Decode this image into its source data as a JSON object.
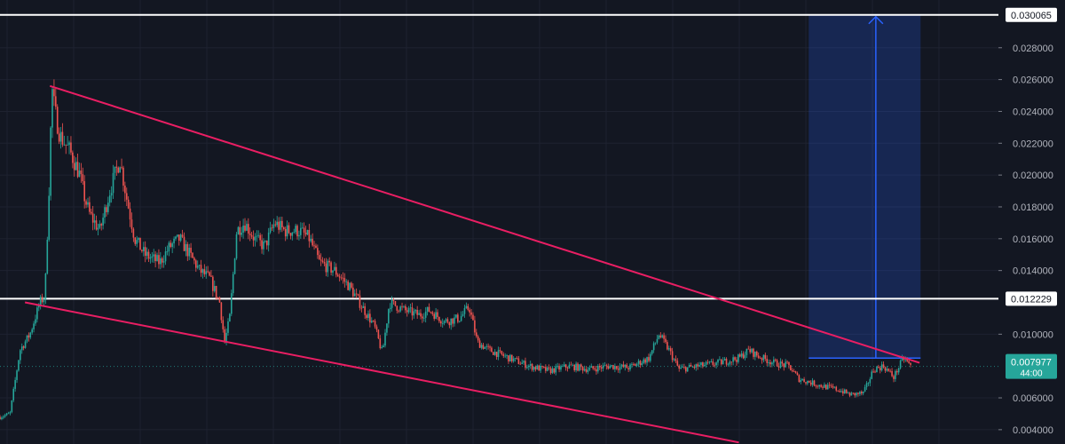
{
  "chart_data": {
    "type": "candlestick",
    "price_axis": {
      "ticks": [
        "0.004000",
        "0.006000",
        "0.010000",
        "0.014000",
        "0.016000",
        "0.018000",
        "0.020000",
        "0.022000",
        "0.024000",
        "0.026000",
        "0.028000"
      ],
      "tick_values": [
        0.004,
        0.006,
        0.01,
        0.014,
        0.016,
        0.018,
        0.02,
        0.022,
        0.024,
        0.026,
        0.028
      ],
      "range": [
        0.0031,
        0.031
      ]
    },
    "horizontal_levels": [
      {
        "value": 0.030065,
        "label": "0.030065",
        "color": "#ffffff"
      },
      {
        "value": 0.012229,
        "label": "0.012229",
        "color": "#ffffff"
      }
    ],
    "current_price": {
      "value": 0.007977,
      "label": "0.007977",
      "countdown": "44:00",
      "color": "#26a69a"
    },
    "trendlines": [
      {
        "name": "upper",
        "color": "#e91e63",
        "from": {
          "x": 0.05,
          "y": 0.0256
        },
        "to": {
          "x": 0.921,
          "y": 0.0082
        }
      },
      {
        "name": "lower",
        "color": "#e91e63",
        "from": {
          "x": 0.025,
          "y": 0.012
        },
        "to": {
          "x": 0.74,
          "y": 0.0032
        }
      }
    ],
    "long_position": {
      "from_x": 0.81,
      "to_x": 0.922,
      "entry": 0.0085,
      "target": 0.030065,
      "color": "#2962ff"
    },
    "path_points": [
      [
        0.0,
        0.0048
      ],
      [
        0.01,
        0.005
      ],
      [
        0.02,
        0.009
      ],
      [
        0.03,
        0.01
      ],
      [
        0.04,
        0.012
      ],
      [
        0.045,
        0.0124
      ],
      [
        0.049,
        0.019
      ],
      [
        0.052,
        0.0255
      ],
      [
        0.055,
        0.024
      ],
      [
        0.06,
        0.0225
      ],
      [
        0.07,
        0.0215
      ],
      [
        0.08,
        0.02
      ],
      [
        0.085,
        0.0185
      ],
      [
        0.09,
        0.0175
      ],
      [
        0.1,
        0.0165
      ],
      [
        0.11,
        0.019
      ],
      [
        0.12,
        0.021
      ],
      [
        0.127,
        0.0185
      ],
      [
        0.135,
        0.016
      ],
      [
        0.145,
        0.015
      ],
      [
        0.16,
        0.0145
      ],
      [
        0.17,
        0.0155
      ],
      [
        0.18,
        0.016
      ],
      [
        0.19,
        0.015
      ],
      [
        0.2,
        0.014
      ],
      [
        0.21,
        0.0135
      ],
      [
        0.22,
        0.012
      ],
      [
        0.225,
        0.0095
      ],
      [
        0.23,
        0.011
      ],
      [
        0.237,
        0.0165
      ],
      [
        0.245,
        0.017
      ],
      [
        0.255,
        0.016
      ],
      [
        0.265,
        0.0155
      ],
      [
        0.275,
        0.017
      ],
      [
        0.285,
        0.0165
      ],
      [
        0.3,
        0.0165
      ],
      [
        0.31,
        0.016
      ],
      [
        0.32,
        0.0145
      ],
      [
        0.335,
        0.014
      ],
      [
        0.35,
        0.013
      ],
      [
        0.36,
        0.012
      ],
      [
        0.375,
        0.0105
      ],
      [
        0.383,
        0.0088
      ],
      [
        0.39,
        0.012
      ],
      [
        0.405,
        0.0115
      ],
      [
        0.42,
        0.0112
      ],
      [
        0.43,
        0.0115
      ],
      [
        0.445,
        0.0108
      ],
      [
        0.46,
        0.011
      ],
      [
        0.47,
        0.0117
      ],
      [
        0.478,
        0.0095
      ],
      [
        0.49,
        0.009
      ],
      [
        0.51,
        0.0085
      ],
      [
        0.53,
        0.008
      ],
      [
        0.55,
        0.0077
      ],
      [
        0.57,
        0.008
      ],
      [
        0.59,
        0.0078
      ],
      [
        0.61,
        0.008
      ],
      [
        0.63,
        0.0079
      ],
      [
        0.65,
        0.0085
      ],
      [
        0.66,
        0.01
      ],
      [
        0.67,
        0.009
      ],
      [
        0.68,
        0.0078
      ],
      [
        0.7,
        0.008
      ],
      [
        0.72,
        0.0082
      ],
      [
        0.74,
        0.0085
      ],
      [
        0.75,
        0.009
      ],
      [
        0.76,
        0.0086
      ],
      [
        0.775,
        0.0082
      ],
      [
        0.79,
        0.008
      ],
      [
        0.8,
        0.0072
      ],
      [
        0.82,
        0.0068
      ],
      [
        0.84,
        0.0065
      ],
      [
        0.852,
        0.0062
      ],
      [
        0.865,
        0.0063
      ],
      [
        0.875,
        0.0078
      ],
      [
        0.885,
        0.008
      ],
      [
        0.895,
        0.0073
      ],
      [
        0.905,
        0.0085
      ],
      [
        0.912,
        0.008
      ]
    ]
  }
}
